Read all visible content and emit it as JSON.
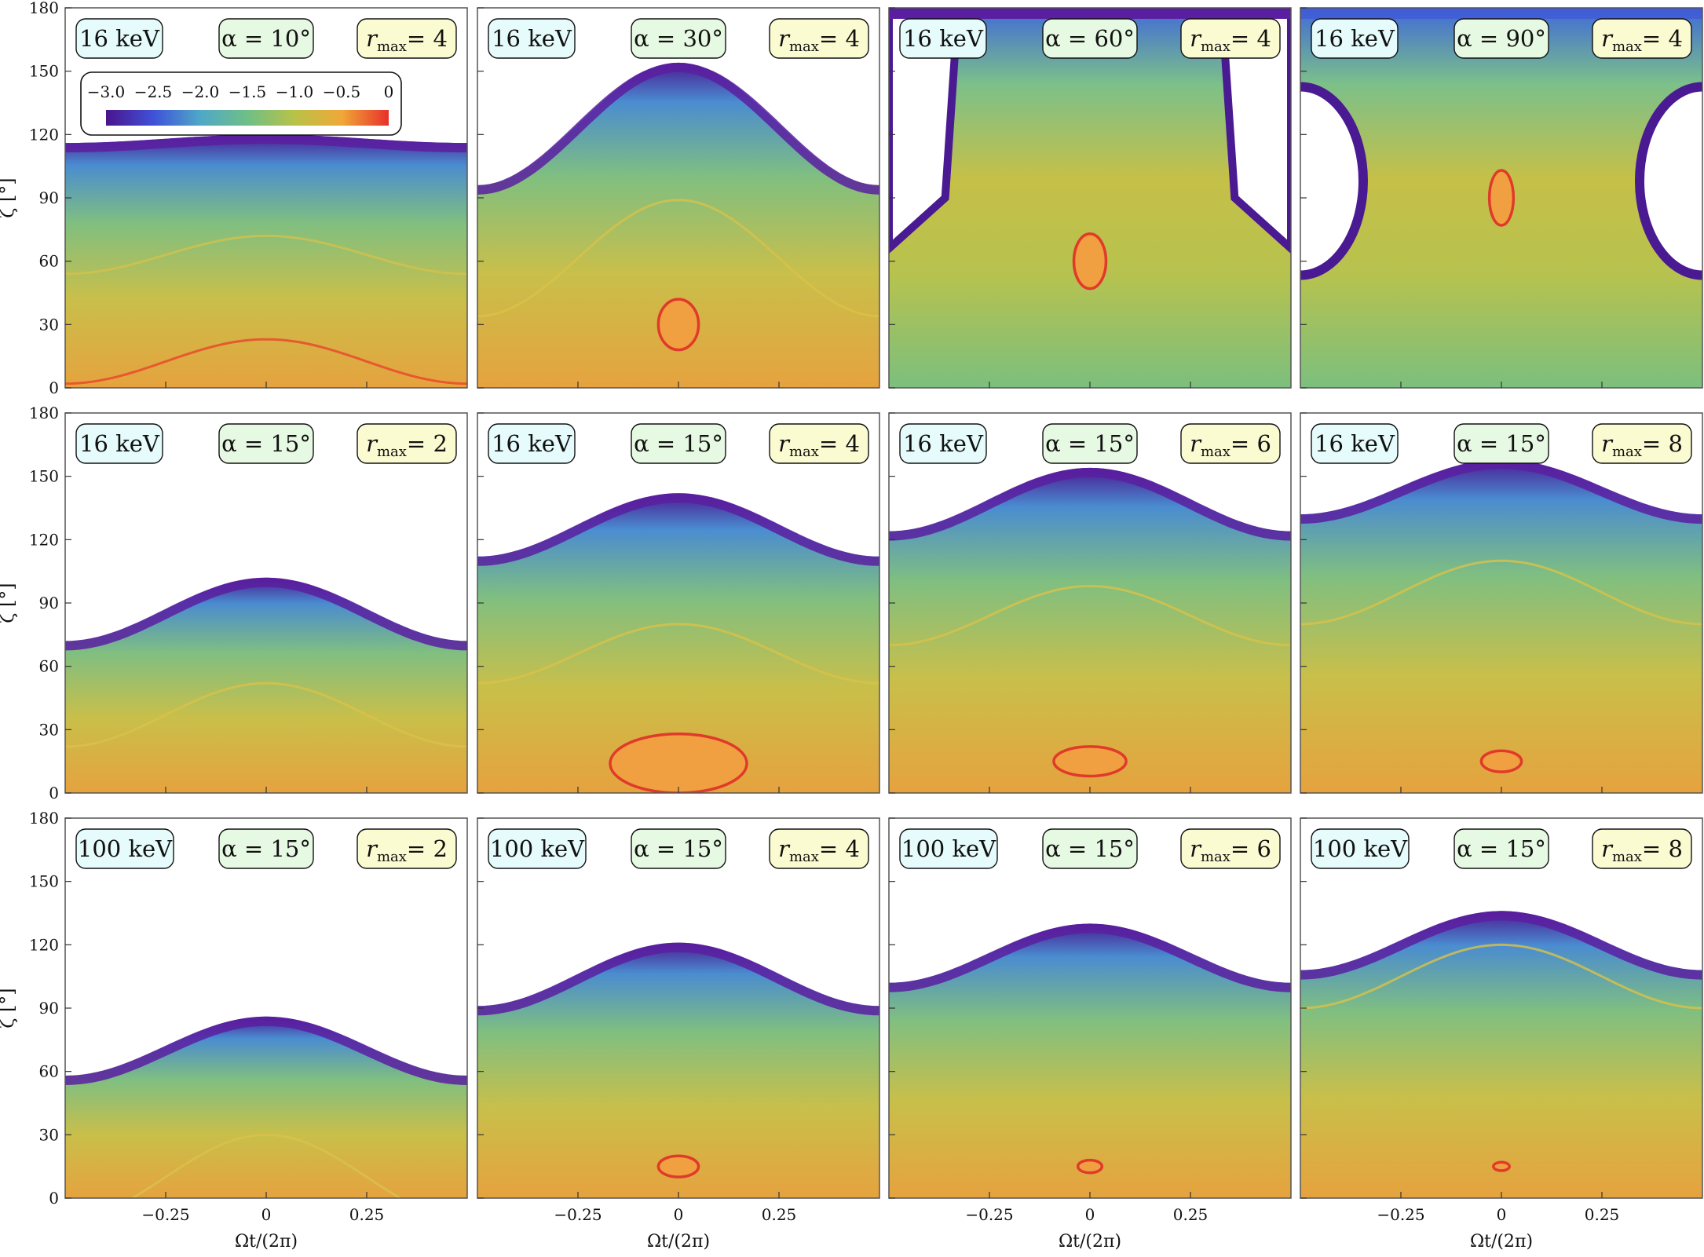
{
  "figure": {
    "y_axis_label": "ζ  [°]",
    "x_axis_label": "Ωt/(2π)",
    "y_ticks": [
      "0",
      "30",
      "60",
      "90",
      "120",
      "150",
      "180"
    ],
    "x_ticks": [
      "−0.25",
      "0",
      "0.25"
    ],
    "colorbar": {
      "ticks": [
        "−3.0",
        "−2.5",
        "−2.0",
        "−1.5",
        "−1.0",
        "−0.5",
        "0"
      ],
      "range": [
        -3.0,
        0
      ],
      "colors": [
        "#4a148c",
        "#3f51d8",
        "#4fa8c8",
        "#6fbf86",
        "#b8c248",
        "#f0a838",
        "#e8302a"
      ]
    },
    "badge_colors": {
      "energy": "#e6fbfb",
      "alpha": "#e6f9e2",
      "rmax": "#fbfbd2"
    },
    "tick_values_x": [
      -0.25,
      0,
      0.25
    ],
    "tick_values_y": [
      0,
      30,
      60,
      90,
      120,
      150,
      180
    ]
  },
  "chart_data": [
    {
      "type": "heatmap",
      "energy": "16 keV",
      "alpha": "α = 10°",
      "rmax_label": "r",
      "rmax_sub": "max",
      "rmax_value": "= 4",
      "xlim": [
        -0.5,
        0.5
      ],
      "ylim": [
        0,
        180
      ],
      "boundary": {
        "base": 116,
        "amp": 4,
        "hole": false
      },
      "ridge": {
        "base": 2,
        "amp": 21,
        "color": "#e8452a"
      },
      "ridge2": {
        "base": 54,
        "amp": 18
      },
      "loop": null,
      "ylabel_show": true,
      "xlabel_show": false
    },
    {
      "type": "heatmap",
      "energy": "16 keV",
      "alpha": "α = 30°",
      "rmax_label": "r",
      "rmax_sub": "max",
      "rmax_value": "= 4",
      "xlim": [
        -0.5,
        0.5
      ],
      "ylim": [
        0,
        180
      ],
      "boundary": {
        "base": 96,
        "amp": 58,
        "hole": false
      },
      "ridge": {
        "base": 34,
        "amp": 55,
        "color": "#d8c24a"
      },
      "ridge2": null,
      "loop": {
        "cx": 0,
        "cy": 30,
        "rx": 0.05,
        "ry": 12
      },
      "ylabel_show": false,
      "xlabel_show": false
    },
    {
      "type": "heatmap",
      "energy": "16 keV",
      "alpha": "α = 60°",
      "rmax_label": "r",
      "rmax_sub": "max",
      "rmax_value": "= 4",
      "xlim": [
        -0.5,
        0.5
      ],
      "ylim": [
        0,
        180
      ],
      "boundary": {
        "base": 64,
        "amp": 120,
        "hole": true,
        "holeSide": "outer"
      },
      "ridge": null,
      "ridge2": null,
      "loop": {
        "cx": 0,
        "cy": 60,
        "rx": 0.04,
        "ry": 13
      },
      "ylabel_show": false,
      "xlabel_show": false
    },
    {
      "type": "heatmap",
      "energy": "16 keV",
      "alpha": "α = 90°",
      "rmax_label": "r",
      "rmax_sub": "max",
      "rmax_value": "= 4",
      "xlim": [
        -0.5,
        0.5
      ],
      "ylim": [
        0,
        180
      ],
      "boundary": {
        "base": 0,
        "amp": 0,
        "hole": true,
        "holeSide": "sides"
      },
      "ridge": null,
      "ridge2": null,
      "loop": {
        "cx": 0,
        "cy": 90,
        "rx": 0.03,
        "ry": 13
      },
      "ylabel_show": false,
      "xlabel_show": false
    },
    {
      "type": "heatmap",
      "energy": "16 keV",
      "alpha": "α = 15°",
      "rmax_label": "r",
      "rmax_sub": "max",
      "rmax_value": "= 2",
      "xlim": [
        -0.5,
        0.5
      ],
      "ylim": [
        0,
        180
      ],
      "boundary": {
        "base": 72,
        "amp": 30,
        "hole": false
      },
      "ridge": {
        "base": 22,
        "amp": 30,
        "color": "#d8c24a"
      },
      "ridge2": null,
      "loop": null,
      "ylabel_show": true,
      "xlabel_show": false
    },
    {
      "type": "heatmap",
      "energy": "16 keV",
      "alpha": "α = 15°",
      "rmax_label": "r",
      "rmax_sub": "max",
      "rmax_value": "= 4",
      "xlim": [
        -0.5,
        0.5
      ],
      "ylim": [
        0,
        180
      ],
      "boundary": {
        "base": 112,
        "amp": 30,
        "hole": false
      },
      "ridge": {
        "base": 52,
        "amp": 28,
        "color": "#d8c24a"
      },
      "ridge2": null,
      "loop": {
        "cx": 0,
        "cy": 14,
        "rx": 0.17,
        "ry": 14,
        "flat": true
      },
      "ylabel_show": false,
      "xlabel_show": false
    },
    {
      "type": "heatmap",
      "energy": "16 keV",
      "alpha": "α = 15°",
      "rmax_label": "r",
      "rmax_sub": "max",
      "rmax_value": "= 6",
      "xlim": [
        -0.5,
        0.5
      ],
      "ylim": [
        0,
        180
      ],
      "boundary": {
        "base": 124,
        "amp": 30,
        "hole": false
      },
      "ridge": {
        "base": 70,
        "amp": 28,
        "color": "#d8c24a"
      },
      "ridge2": null,
      "loop": {
        "cx": 0,
        "cy": 15,
        "rx": 0.09,
        "ry": 7
      },
      "ylabel_show": false,
      "xlabel_show": false
    },
    {
      "type": "heatmap",
      "energy": "16 keV",
      "alpha": "α = 15°",
      "rmax_label": "r",
      "rmax_sub": "max",
      "rmax_value": "= 8",
      "xlim": [
        -0.5,
        0.5
      ],
      "ylim": [
        0,
        180
      ],
      "boundary": {
        "base": 132,
        "amp": 26,
        "hole": false
      },
      "ridge": {
        "base": 80,
        "amp": 30,
        "color": "#d8c24a"
      },
      "ridge2": null,
      "loop": {
        "cx": 0,
        "cy": 15,
        "rx": 0.05,
        "ry": 5
      },
      "ylabel_show": false,
      "xlabel_show": false
    },
    {
      "type": "heatmap",
      "energy": "100 keV",
      "alpha": "α = 15°",
      "rmax_label": "r",
      "rmax_sub": "max",
      "rmax_value": "= 2",
      "xlim": [
        -0.5,
        0.5
      ],
      "ylim": [
        0,
        180
      ],
      "boundary": {
        "base": 58,
        "amp": 28,
        "hole": false
      },
      "ridge": {
        "base": -10,
        "amp": 40,
        "color": "#d8c24a"
      },
      "ridge2": null,
      "loop": null,
      "ylabel_show": true,
      "xlabel_show": true
    },
    {
      "type": "heatmap",
      "energy": "100 keV",
      "alpha": "α = 15°",
      "rmax_label": "r",
      "rmax_sub": "max",
      "rmax_value": "= 4",
      "xlim": [
        -0.5,
        0.5
      ],
      "ylim": [
        0,
        180
      ],
      "boundary": {
        "base": 91,
        "amp": 30,
        "hole": false
      },
      "ridge": null,
      "ridge2": null,
      "loop": {
        "cx": 0,
        "cy": 15,
        "rx": 0.05,
        "ry": 5
      },
      "ylabel_show": false,
      "xlabel_show": true
    },
    {
      "type": "heatmap",
      "energy": "100 keV",
      "alpha": "α = 15°",
      "rmax_label": "r",
      "rmax_sub": "max",
      "rmax_value": "= 6",
      "xlim": [
        -0.5,
        0.5
      ],
      "ylim": [
        0,
        180
      ],
      "boundary": {
        "base": 102,
        "amp": 28,
        "hole": false
      },
      "ridge": null,
      "ridge2": null,
      "loop": {
        "cx": 0,
        "cy": 15,
        "rx": 0.03,
        "ry": 3
      },
      "ylabel_show": false,
      "xlabel_show": true
    },
    {
      "type": "heatmap",
      "energy": "100 keV",
      "alpha": "α = 15°",
      "rmax_label": "r",
      "rmax_sub": "max",
      "rmax_value": "= 8",
      "xlim": [
        -0.5,
        0.5
      ],
      "ylim": [
        0,
        180
      ],
      "boundary": {
        "base": 108,
        "amp": 28,
        "hole": false
      },
      "ridge": {
        "base": 90,
        "amp": 30,
        "color": "#d8c24a"
      },
      "ridge2": null,
      "loop": {
        "cx": 0,
        "cy": 15,
        "rx": 0.02,
        "ry": 2
      },
      "ylabel_show": false,
      "xlabel_show": true
    }
  ]
}
